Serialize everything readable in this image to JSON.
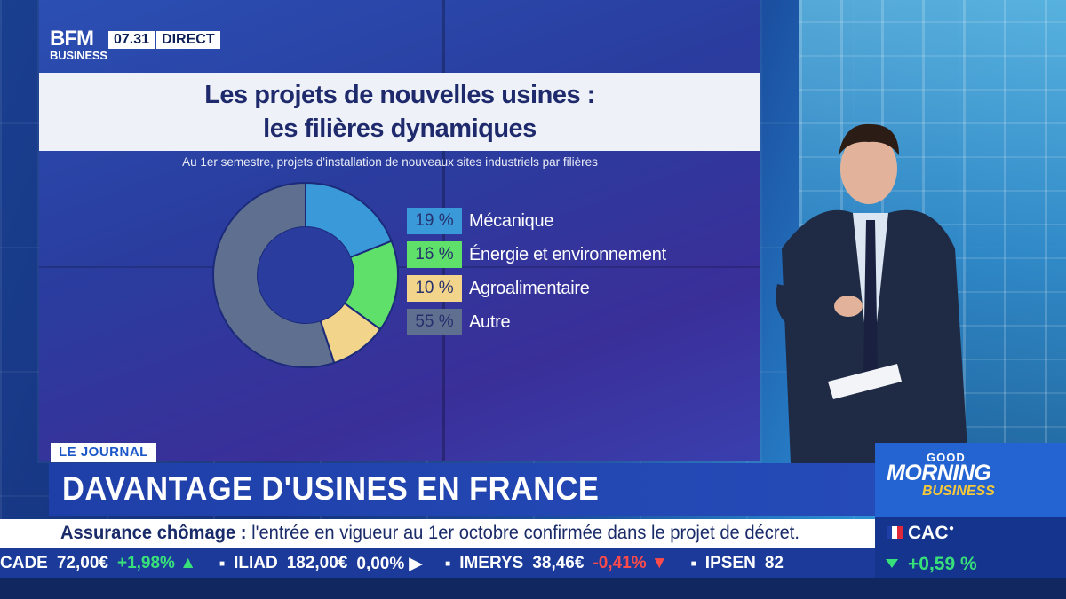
{
  "channel": {
    "logo_top": "BFM",
    "logo_bottom": "BUSINESS",
    "time": "07.31",
    "live": "DIRECT"
  },
  "chart_data": {
    "type": "pie",
    "title_line1": "Les projets de nouvelles usines :",
    "title_line2": "les filières dynamiques",
    "subtitle": "Au 1er semestre, projets d'installation de nouveaux sites industriels par filières",
    "slices": [
      {
        "label": "Mécanique",
        "value": 19,
        "display": "19 %",
        "color": "#3a9ad9"
      },
      {
        "label": "Énergie et environnement",
        "value": 16,
        "display": "16 %",
        "color": "#5ee06a"
      },
      {
        "label": "Agroalimentaire",
        "value": 10,
        "display": "10 %",
        "color": "#f2d58a"
      },
      {
        "label": "Autre",
        "value": 55,
        "display": "55 %",
        "color": "#5f6f8f"
      }
    ]
  },
  "lower_third": {
    "tag": "LE JOURNAL",
    "headline": "DAVANTAGE D'USINES EN FRANCE",
    "breaking_bold": "Assurance chômage :",
    "breaking_text": " l'entrée en vigueur au 1er octobre confirmée dans le projet de décret."
  },
  "ticker": [
    {
      "name": "CADE",
      "price": "72,00€",
      "change": "+1,98%",
      "trend": "up"
    },
    {
      "name": "ILIAD",
      "price": "182,00€",
      "change": "0,00%",
      "trend": "flat"
    },
    {
      "name": "IMERYS",
      "price": "38,46€",
      "change": "-0,41%",
      "trend": "down"
    },
    {
      "name": "IPSEN",
      "price": "82",
      "change": "",
      "trend": "flat"
    }
  ],
  "show": {
    "good": "GOOD",
    "morning": "MORNING",
    "business": "BUSINESS"
  },
  "index": {
    "name": "CAC",
    "value": "+0,59 %",
    "flag_colors": [
      "#1f3fa8",
      "#ffffff",
      "#e0283a"
    ]
  }
}
